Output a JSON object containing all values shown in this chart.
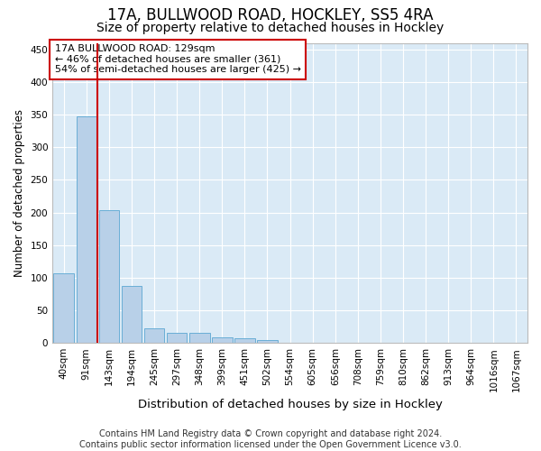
{
  "title1": "17A, BULLWOOD ROAD, HOCKLEY, SS5 4RA",
  "title2": "Size of property relative to detached houses in Hockley",
  "xlabel": "Distribution of detached houses by size in Hockley",
  "ylabel": "Number of detached properties",
  "bar_labels": [
    "40sqm",
    "91sqm",
    "143sqm",
    "194sqm",
    "245sqm",
    "297sqm",
    "348sqm",
    "399sqm",
    "451sqm",
    "502sqm",
    "554sqm",
    "605sqm",
    "656sqm",
    "708sqm",
    "759sqm",
    "810sqm",
    "862sqm",
    "913sqm",
    "964sqm",
    "1016sqm",
    "1067sqm"
  ],
  "bar_values": [
    107,
    348,
    204,
    88,
    23,
    16,
    16,
    8,
    7,
    4,
    0,
    0,
    0,
    0,
    0,
    0,
    0,
    0,
    0,
    0,
    0
  ],
  "bar_color": "#b8d0e8",
  "bar_edgecolor": "#6aaed6",
  "background_color": "#daeaf6",
  "grid_color": "#ffffff",
  "vline_color": "#cc0000",
  "vline_index": 2,
  "annotation_text": "17A BULLWOOD ROAD: 129sqm\n← 46% of detached houses are smaller (361)\n54% of semi-detached houses are larger (425) →",
  "annotation_box_facecolor": "#ffffff",
  "annotation_box_edgecolor": "#cc0000",
  "ylim": [
    0,
    460
  ],
  "yticks": [
    0,
    50,
    100,
    150,
    200,
    250,
    300,
    350,
    400,
    450
  ],
  "footer_text": "Contains HM Land Registry data © Crown copyright and database right 2024.\nContains public sector information licensed under the Open Government Licence v3.0.",
  "title1_fontsize": 12,
  "title2_fontsize": 10,
  "annotation_fontsize": 8,
  "footer_fontsize": 7,
  "tick_fontsize": 7.5,
  "ylabel_fontsize": 8.5,
  "xlabel_fontsize": 9.5
}
